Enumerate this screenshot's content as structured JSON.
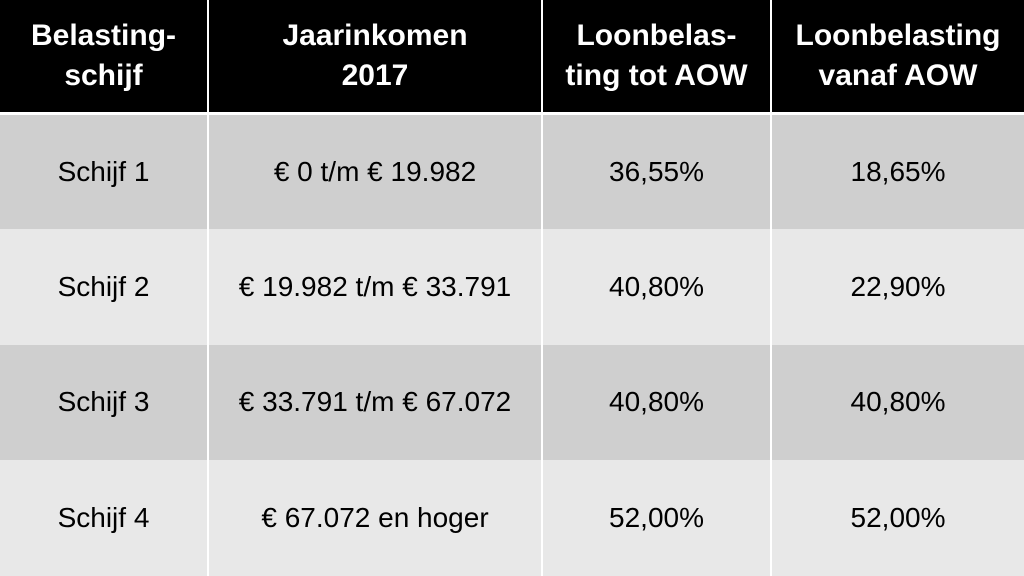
{
  "table": {
    "headers": [
      {
        "line1": "Belasting-",
        "line2": "schijf"
      },
      {
        "line1": "Jaarinkomen",
        "line2": "2017"
      },
      {
        "line1": "Loonbelas-",
        "line2": "ting tot AOW"
      },
      {
        "line1": "Loonbelasting",
        "line2": "vanaf AOW"
      }
    ],
    "rows": [
      [
        "Schijf 1",
        "€ 0 t/m € 19.982",
        "36,55%",
        "18,65%"
      ],
      [
        "Schijf 2",
        "€ 19.982 t/m € 33.791",
        "40,80%",
        "22,90%"
      ],
      [
        "Schijf 3",
        "€ 33.791 t/m € 67.072",
        "40,80%",
        "40,80%"
      ],
      [
        "Schijf 4",
        "€ 67.072 en hoger",
        "52,00%",
        "52,00%"
      ]
    ]
  },
  "colors": {
    "header_bg": "#000000",
    "header_text": "#ffffff",
    "row_odd_bg": "#cfcfcf",
    "row_even_bg": "#e8e8e8"
  }
}
